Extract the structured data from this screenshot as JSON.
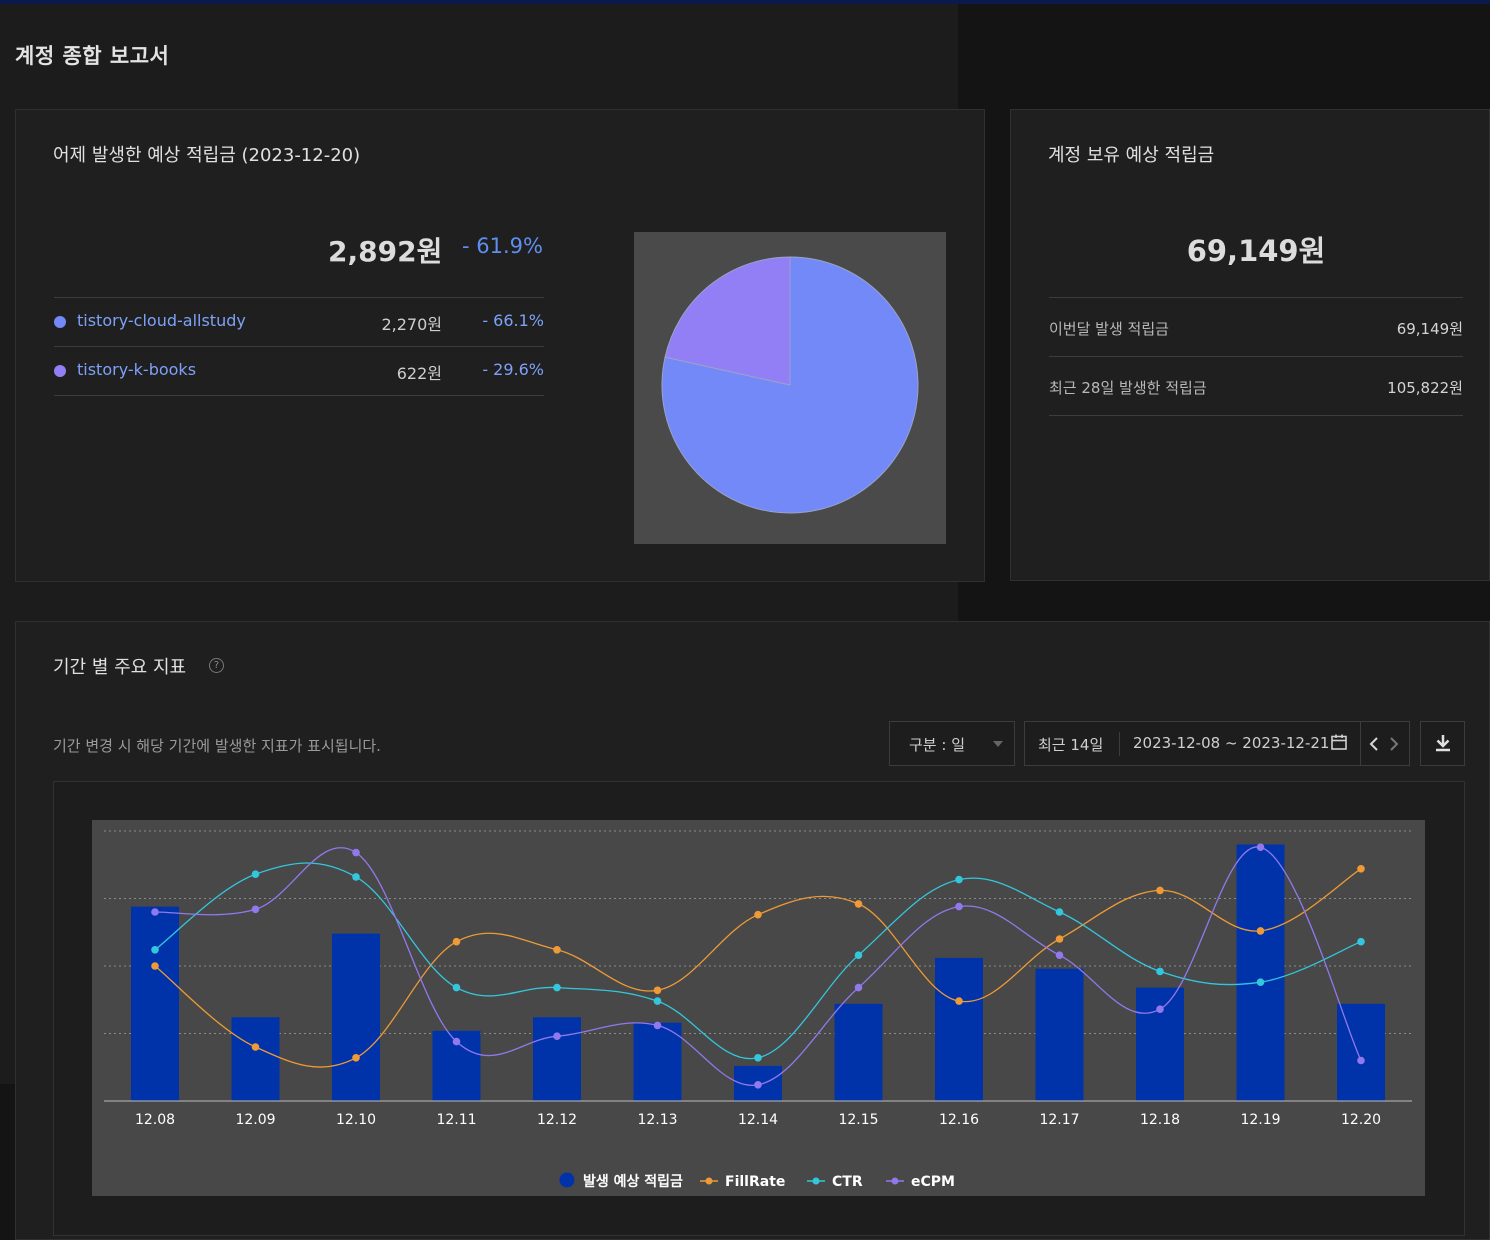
{
  "page": {
    "title": "계정 종합 보고서"
  },
  "yesterday": {
    "title": "어제 발생한 예상 적립금 (2023-12-20)",
    "total": "2,892원",
    "change": "- 61.9%",
    "sites": [
      {
        "name": "tistory-cloud-allstudy",
        "amount": "2,270원",
        "change": "- 66.1%",
        "color": "#7289f7",
        "share": 0.785
      },
      {
        "name": "tistory-k-books",
        "amount": "622원",
        "change": "- 29.6%",
        "color": "#927ff5",
        "share": 0.215
      }
    ]
  },
  "balance": {
    "title": "계정 보유 예상 적립금",
    "total": "69,149원",
    "rows": [
      {
        "label": "이번달 발생 적립금",
        "value": "69,149원"
      },
      {
        "label": "최근 28일 발생한 적립금",
        "value": "105,822원"
      }
    ]
  },
  "metrics": {
    "title": "기간 별 주요 지표",
    "help_icon": "question-circle-icon",
    "subtitle": "기간 변경 시 해당 기간에 발생한 지표가 표시됩니다.",
    "unit_select": "구분 : 일",
    "period_label": "최근 14일",
    "date_range": "2023-12-08 ~ 2023-12-21",
    "icons": {
      "calendar": "calendar-icon",
      "prev": "chevron-left-icon",
      "next": "chevron-right-icon",
      "download": "download-icon"
    }
  },
  "chart_data": {
    "type": "bar",
    "categories": [
      "12.08",
      "12.09",
      "12.10",
      "12.11",
      "12.12",
      "12.13",
      "12.14",
      "12.15",
      "12.16",
      "12.17",
      "12.18",
      "12.19",
      "12.20"
    ],
    "y_axis_labels_shown": false,
    "grid": true,
    "legend_position": "bottom",
    "series": [
      {
        "name": "발생 예상 적립금",
        "type": "bar",
        "color": "#0033aa",
        "values": [
          0.72,
          0.31,
          0.62,
          0.26,
          0.31,
          0.29,
          0.13,
          0.36,
          0.53,
          0.49,
          0.42,
          0.95,
          0.36
        ]
      },
      {
        "name": "FillRate",
        "type": "line",
        "color": "#ee9a36",
        "values": [
          0.5,
          0.2,
          0.16,
          0.59,
          0.56,
          0.41,
          0.69,
          0.73,
          0.37,
          0.6,
          0.78,
          0.63,
          0.86
        ]
      },
      {
        "name": "CTR",
        "type": "line",
        "color": "#33c7dd",
        "values": [
          0.56,
          0.84,
          0.83,
          0.42,
          0.42,
          0.37,
          0.16,
          0.54,
          0.82,
          0.7,
          0.48,
          0.44,
          0.59
        ]
      },
      {
        "name": "eCPM",
        "type": "line",
        "color": "#9178ec",
        "values": [
          0.7,
          0.71,
          0.92,
          0.22,
          0.24,
          0.28,
          0.06,
          0.42,
          0.72,
          0.54,
          0.34,
          0.94,
          0.15
        ]
      }
    ]
  }
}
